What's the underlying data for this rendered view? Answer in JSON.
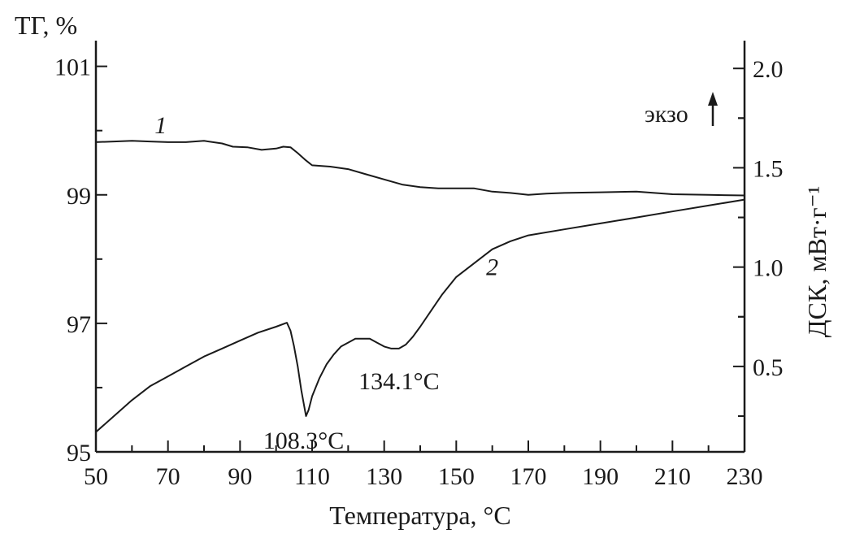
{
  "chart_data": {
    "type": "line",
    "xlabel": "Температура, °C",
    "ylabel_left": "ТГ, %",
    "ylabel_right": "ДСК, мВт·г⁻¹",
    "exo_label": "экзо",
    "x_ticks": [
      50,
      70,
      90,
      110,
      130,
      150,
      170,
      190,
      210,
      230
    ],
    "y_left_ticks": [
      "95",
      "97",
      "99",
      "101"
    ],
    "y_right_ticks": [
      "0.5",
      "1.0",
      "1.5",
      "2.0"
    ],
    "xlim": [
      50,
      230
    ],
    "y_left_lim": [
      95,
      101.4
    ],
    "y_right_lim": [
      0.07,
      2.14
    ],
    "series": [
      {
        "name": "1",
        "axis": "left",
        "x": [
          50,
          55,
          60,
          65,
          70,
          75,
          80,
          85,
          88,
          92,
          96,
          100,
          102,
          104,
          106,
          108,
          110,
          115,
          120,
          125,
          130,
          135,
          140,
          145,
          150,
          155,
          160,
          165,
          170,
          175,
          180,
          190,
          200,
          210,
          220,
          230
        ],
        "y": [
          99.82,
          99.83,
          99.84,
          99.83,
          99.82,
          99.82,
          99.84,
          99.8,
          99.75,
          99.74,
          99.7,
          99.72,
          99.75,
          99.74,
          99.65,
          99.55,
          99.46,
          99.44,
          99.4,
          99.32,
          99.24,
          99.16,
          99.12,
          99.1,
          99.1,
          99.1,
          99.05,
          99.03,
          99.0,
          99.02,
          99.03,
          99.04,
          99.05,
          99.01,
          99.0,
          98.99
        ]
      },
      {
        "name": "2",
        "axis": "right",
        "x": [
          50,
          55,
          60,
          65,
          70,
          75,
          80,
          85,
          90,
          95,
          100,
          103,
          104,
          105,
          106,
          107,
          108.3,
          109,
          110,
          112,
          114,
          116,
          118,
          120,
          122,
          124,
          126,
          128,
          130,
          132,
          134.1,
          136,
          138,
          140,
          143,
          146,
          150,
          155,
          160,
          165,
          170,
          180,
          190,
          200,
          210,
          220,
          230
        ],
        "y": [
          0.17,
          0.25,
          0.33,
          0.4,
          0.45,
          0.5,
          0.55,
          0.59,
          0.63,
          0.67,
          0.7,
          0.72,
          0.68,
          0.6,
          0.5,
          0.38,
          0.25,
          0.28,
          0.35,
          0.44,
          0.51,
          0.56,
          0.6,
          0.62,
          0.64,
          0.64,
          0.64,
          0.62,
          0.6,
          0.59,
          0.59,
          0.61,
          0.65,
          0.7,
          0.78,
          0.86,
          0.95,
          1.02,
          1.09,
          1.13,
          1.16,
          1.19,
          1.22,
          1.25,
          1.28,
          1.31,
          1.34
        ]
      }
    ],
    "annotations": [
      {
        "text": "108.3°C",
        "x": 108.3,
        "series": "2"
      },
      {
        "text": "134.1°C",
        "x": 134.1,
        "series": "2"
      }
    ],
    "grid": false
  }
}
